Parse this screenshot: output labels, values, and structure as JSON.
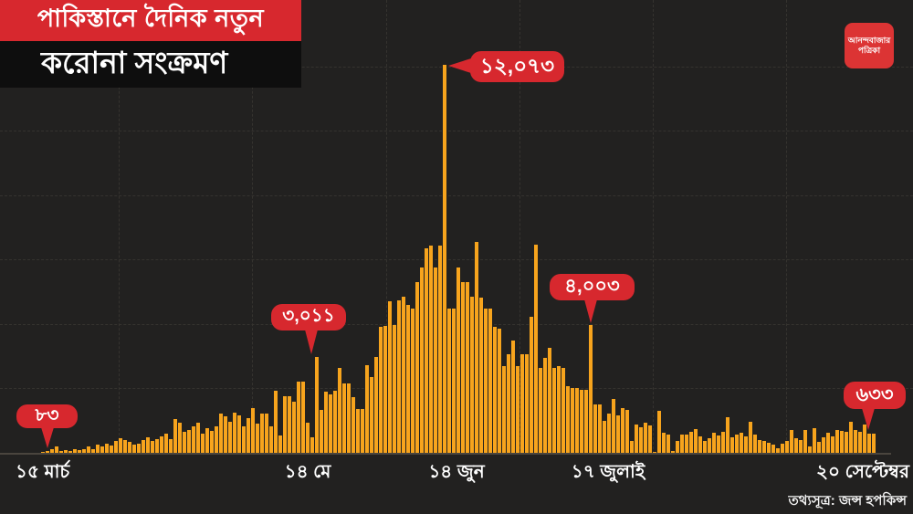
{
  "header": {
    "title_line1": "পাকিস্তানে দৈনিক নতুন",
    "title_line2": "করোনা সংক্রমণ",
    "logo_line1": "আনন্দবাজার",
    "logo_line2": "পত্রিকা"
  },
  "source_text": "তথ্যসূত্র: জন্স হপকিন্স",
  "colors": {
    "background": "#222120",
    "bar": "#f7a41d",
    "accent_red": "#d7282e",
    "title_black_strip": "#0e0e0e",
    "grid": "#35332f",
    "text": "#ffffff"
  },
  "chart_data": {
    "type": "bar",
    "title": "পাকিস্তানে দৈনিক নতুন করোনা সংক্রমণ",
    "xlabel": "",
    "ylabel": "",
    "ylim": [
      0,
      12073
    ],
    "grid": "dashed-subtle",
    "legend": "none",
    "x_tick_labels": [
      "১৫ মার্চ",
      "১৪ মে",
      "১৪ জুন",
      "১৭ জুলাই",
      "২০ সেপ্টেম্বর"
    ],
    "values": [
      20,
      10,
      5,
      8,
      12,
      6,
      15,
      10,
      30,
      55,
      83,
      140,
      225,
      85,
      120,
      85,
      155,
      120,
      155,
      225,
      155,
      280,
      225,
      320,
      250,
      395,
      480,
      440,
      375,
      280,
      320,
      440,
      500,
      395,
      460,
      530,
      625,
      460,
      1070,
      955,
      670,
      745,
      840,
      955,
      625,
      785,
      715,
      840,
      1240,
      1165,
      1000,
      1265,
      1190,
      860,
      1115,
      1410,
      945,
      1257,
      1250,
      850,
      1960,
      570,
      1780,
      1780,
      1610,
      2230,
      2230,
      975,
      520,
      3011,
      1360,
      1920,
      1840,
      1965,
      2670,
      2175,
      2175,
      1760,
      1400,
      1400,
      2750,
      2390,
      3000,
      3950,
      3975,
      4730,
      4000,
      4750,
      4890,
      4610,
      4515,
      5320,
      5790,
      6385,
      6450,
      5790,
      6450,
      12073,
      4500,
      4500,
      5790,
      5320,
      5320,
      4890,
      6575,
      4845,
      4515,
      4515,
      3950,
      3880,
      2720,
      3080,
      3505,
      2720,
      3080,
      3080,
      4240,
      6480,
      2670,
      2985,
      3300,
      2670,
      2720,
      2670,
      2100,
      2040,
      2040,
      1990,
      1990,
      4003,
      1540,
      1540,
      1020,
      1240,
      1690,
      1190,
      1410,
      1350,
      390,
      907,
      830,
      975,
      870,
      60,
      1325,
      640,
      595,
      100,
      385,
      610,
      610,
      690,
      765,
      545,
      405,
      480,
      640,
      575,
      690,
      1140,
      500,
      585,
      640,
      545,
      990,
      585,
      435,
      390,
      345,
      280,
      185,
      310,
      390,
      735,
      480,
      435,
      735,
      230,
      800,
      370,
      500,
      640,
      545,
      750,
      705,
      680,
      990,
      750,
      680,
      895,
      615,
      633
    ],
    "annotations": [
      {
        "label": "৮৩",
        "value": 83,
        "bar_index": 10
      },
      {
        "label": "৩,০১১",
        "value": 3011,
        "bar_index": 69
      },
      {
        "label": "১২,০৭৩",
        "value": 12073,
        "bar_index": 97
      },
      {
        "label": "৪,০০৩",
        "value": 4003,
        "bar_index": 129
      },
      {
        "label": "৬৩৩",
        "value": 633,
        "bar_index": 191
      }
    ]
  }
}
